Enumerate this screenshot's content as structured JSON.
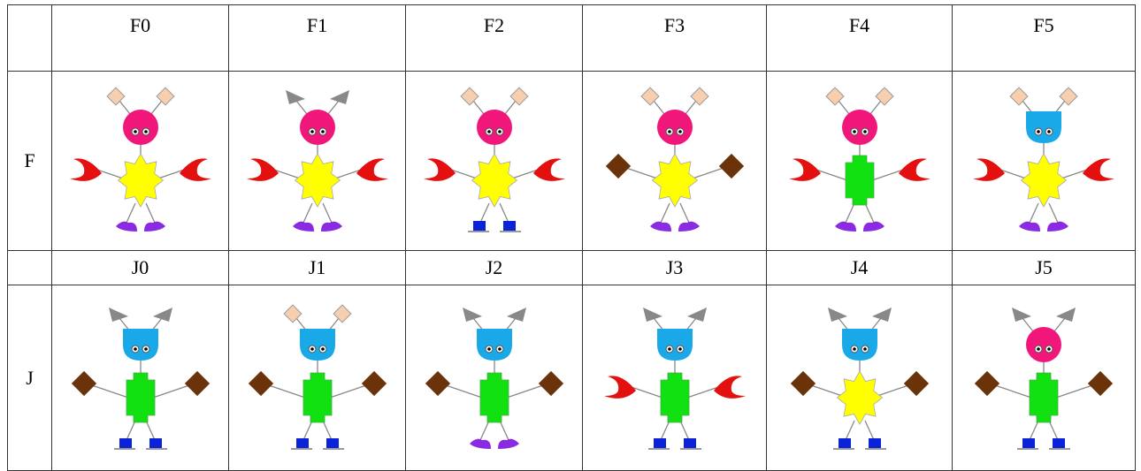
{
  "table": {
    "groups": [
      {
        "label": "F",
        "columns": [
          "F0",
          "F1",
          "F2",
          "F3",
          "F4",
          "F5"
        ]
      },
      {
        "label": "J",
        "columns": [
          "J0",
          "J1",
          "J2",
          "J3",
          "J4",
          "J5"
        ]
      }
    ]
  }
}
